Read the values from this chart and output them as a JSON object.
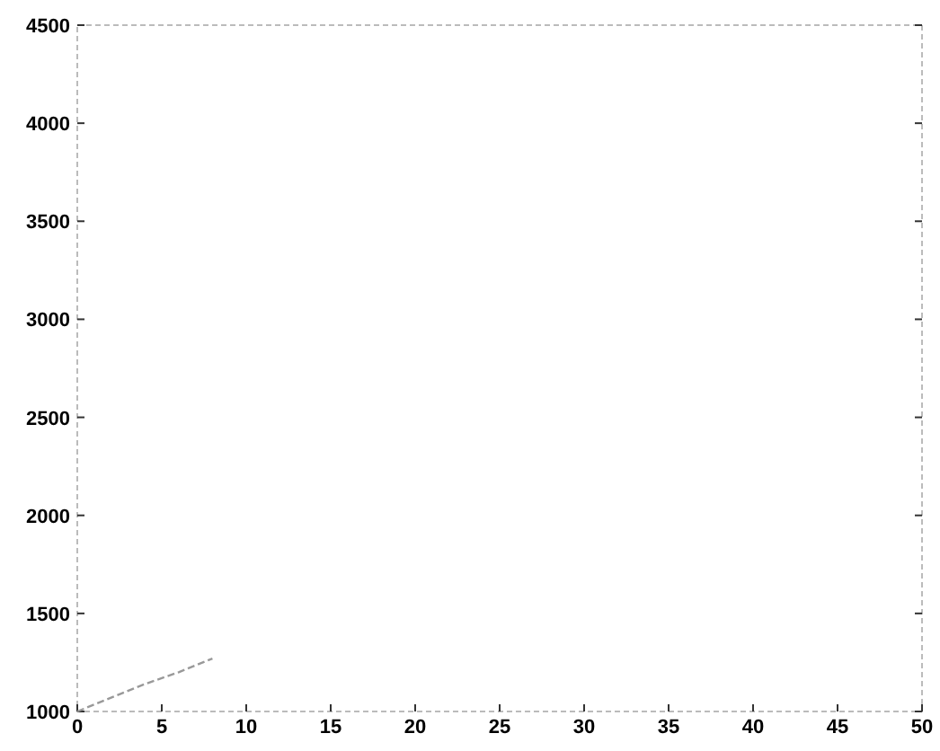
{
  "chart_data": {
    "type": "line",
    "x": [
      0,
      2,
      4,
      6,
      8
    ],
    "values": [
      1000,
      1070,
      1140,
      1200,
      1270
    ],
    "color": "#999999",
    "xlim": [
      0,
      50
    ],
    "ylim": [
      1000,
      4500
    ],
    "xticks": [
      0,
      5,
      10,
      15,
      20,
      25,
      30,
      35,
      40,
      45,
      50
    ],
    "yticks": [
      1000,
      1500,
      2000,
      2500,
      3000,
      3500,
      4000,
      4500
    ],
    "grid": false,
    "line_style": "dashed"
  }
}
